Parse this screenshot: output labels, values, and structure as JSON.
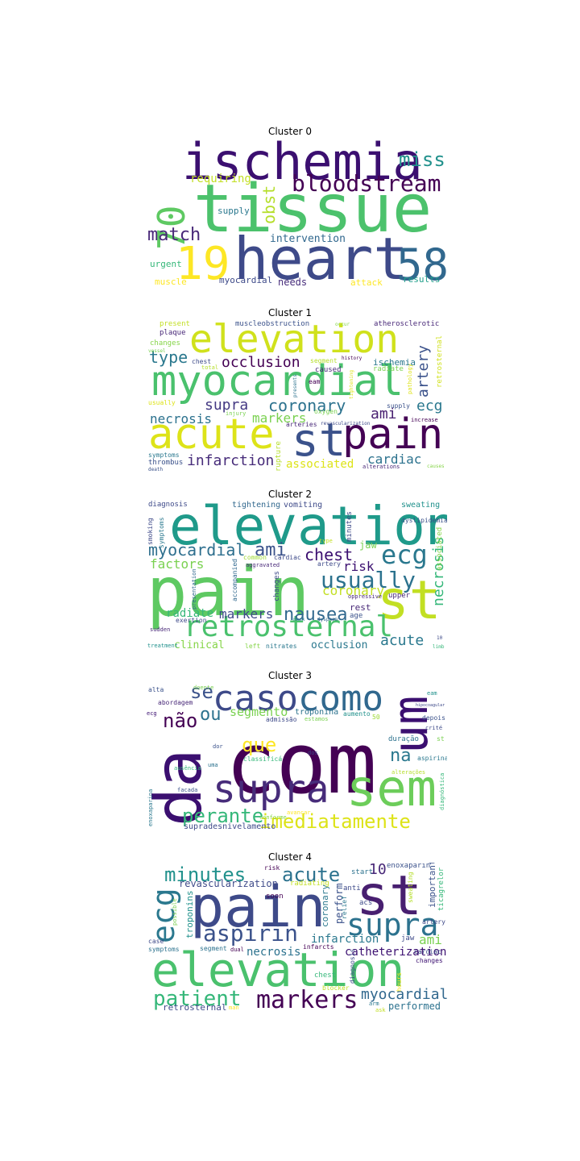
{
  "clusters": [
    {
      "title": "Cluster 0",
      "words": [
        {
          "text": "ischemia",
          "color": "#3b0f70"
        },
        {
          "text": "tissue",
          "color": "#4cc26c"
        },
        {
          "text": "heart",
          "color": "#3e4a89"
        },
        {
          "text": "70",
          "color": "#5ec962"
        },
        {
          "text": "19",
          "color": "#fde725"
        },
        {
          "text": "58",
          "color": "#31688e"
        },
        {
          "text": "bloodstream",
          "color": "#440154"
        },
        {
          "text": "miss",
          "color": "#21918c"
        },
        {
          "text": "match",
          "color": "#482878"
        },
        {
          "text": "obst",
          "color": "#b5de2b"
        },
        {
          "text": "requiring",
          "color": "#c2df23"
        },
        {
          "text": "supply",
          "color": "#2a788e"
        },
        {
          "text": "intervention",
          "color": "#31688e"
        },
        {
          "text": "urgent",
          "color": "#35b779"
        },
        {
          "text": "muscle",
          "color": "#fde725"
        },
        {
          "text": "myocardial",
          "color": "#3e4a89"
        },
        {
          "text": "needs",
          "color": "#472d7b"
        },
        {
          "text": "attack",
          "color": "#fde725"
        },
        {
          "text": "results",
          "color": "#1f9e89"
        }
      ]
    },
    {
      "title": "Cluster 1",
      "words": [
        {
          "text": "elevation",
          "color": "#d0e11c"
        },
        {
          "text": "myocardial",
          "color": "#4ac16d"
        },
        {
          "text": "acute",
          "color": "#dde318"
        },
        {
          "text": "st",
          "color": "#3b528b"
        },
        {
          "text": "pain",
          "color": "#440154"
        },
        {
          "text": "occlusion",
          "color": "#440154"
        },
        {
          "text": "type",
          "color": "#2a788e"
        },
        {
          "text": "coronary",
          "color": "#2c728e"
        },
        {
          "text": "supra",
          "color": "#443983"
        },
        {
          "text": "necrosis",
          "color": "#2c728e"
        },
        {
          "text": "markers",
          "color": "#7ad151"
        },
        {
          "text": "ami",
          "color": "#481f70"
        },
        {
          "text": "ecg",
          "color": "#2a788e"
        },
        {
          "text": "artery",
          "color": "#3b528b"
        },
        {
          "text": "infarction",
          "color": "#472c7a"
        },
        {
          "text": "associated",
          "color": "#dde318"
        },
        {
          "text": "cardiac",
          "color": "#2c728e"
        },
        {
          "text": "present",
          "color": "#c2df23"
        },
        {
          "text": "muscleobstruction",
          "color": "#3b528b"
        },
        {
          "text": "atherosclerotic",
          "color": "#482878"
        },
        {
          "text": "plaque",
          "color": "#482878"
        },
        {
          "text": "changes",
          "color": "#86d549"
        },
        {
          "text": "ischemia",
          "color": "#2a788e"
        },
        {
          "text": "chest",
          "color": "#3e4a89"
        },
        {
          "text": "segment",
          "color": "#b5de2b"
        },
        {
          "text": "caused",
          "color": "#482878"
        },
        {
          "text": "radiate",
          "color": "#7ad151"
        },
        {
          "text": "retrosternal",
          "color": "#d0e11c"
        },
        {
          "text": "eam",
          "color": "#440154"
        },
        {
          "text": "supply",
          "color": "#3b528b"
        },
        {
          "text": "oxygen",
          "color": "#7ad151"
        },
        {
          "text": "usually",
          "color": "#dde318"
        },
        {
          "text": "rupture",
          "color": "#b5de2b"
        },
        {
          "text": "arteries",
          "color": "#482878"
        },
        {
          "text": "symptoms",
          "color": "#2a788e"
        },
        {
          "text": "thrombus",
          "color": "#3b528b"
        },
        {
          "text": "alterations",
          "color": "#482878"
        },
        {
          "text": "increase",
          "color": "#440154"
        },
        {
          "text": "revascularization",
          "color": "#3e4a89"
        },
        {
          "text": "total",
          "color": "#b5de2b"
        },
        {
          "text": "history",
          "color": "#440154"
        },
        {
          "text": "pathology",
          "color": "#dde318"
        },
        {
          "text": "injury",
          "color": "#7ad151"
        },
        {
          "text": "death",
          "color": "#3b528b"
        },
        {
          "text": "causes",
          "color": "#86d549"
        },
        {
          "text": "vessel",
          "color": "#7ad151"
        },
        {
          "text": "occur",
          "color": "#86d549"
        },
        {
          "text": "tightening",
          "color": "#dde318"
        },
        {
          "text": "presents",
          "color": "#2c728e"
        }
      ]
    },
    {
      "title": "Cluster 2",
      "words": [
        {
          "text": "elevation",
          "color": "#1f9a8a"
        },
        {
          "text": "pain",
          "color": "#5ec962"
        },
        {
          "text": "st",
          "color": "#c2df23"
        },
        {
          "text": "retrosternal",
          "color": "#4ac16d"
        },
        {
          "text": "ecg",
          "color": "#2a788e"
        },
        {
          "text": "usually",
          "color": "#2c728e"
        },
        {
          "text": "chest",
          "color": "#3b0f70"
        },
        {
          "text": "myocardial",
          "color": "#2e6f8e"
        },
        {
          "text": "ami",
          "color": "#3b528b"
        },
        {
          "text": "nausea",
          "color": "#31688e"
        },
        {
          "text": "necrosis",
          "color": "#35b779"
        },
        {
          "text": "acute",
          "color": "#2a788e"
        },
        {
          "text": "coronary",
          "color": "#c2df23"
        },
        {
          "text": "factors",
          "color": "#7ad151"
        },
        {
          "text": "risk",
          "color": "#3b0f70"
        },
        {
          "text": "markers",
          "color": "#3e4a89"
        },
        {
          "text": "radiate",
          "color": "#35b779"
        },
        {
          "text": "occlusion",
          "color": "#2a788e"
        },
        {
          "text": "clinical",
          "color": "#86d549"
        },
        {
          "text": "diagnosis",
          "color": "#3e4a89"
        },
        {
          "text": "tightening",
          "color": "#31688e"
        },
        {
          "text": "vomiting",
          "color": "#3e4a89"
        },
        {
          "text": "sweating",
          "color": "#21918c"
        },
        {
          "text": "associated",
          "color": "#86d549"
        },
        {
          "text": "smoking",
          "color": "#3e4a89"
        },
        {
          "text": "symptoms",
          "color": "#2a788e"
        },
        {
          "text": "minutes",
          "color": "#3e4a89"
        },
        {
          "text": "dyslipidemia",
          "color": "#3b528b"
        },
        {
          "text": "jaw",
          "color": "#7ad151"
        },
        {
          "text": "type",
          "color": "#c2df23"
        },
        {
          "text": "common",
          "color": "#a0da39"
        },
        {
          "text": "cardiac",
          "color": "#3e4a89"
        },
        {
          "text": "aggravated",
          "color": "#482878"
        },
        {
          "text": "artery",
          "color": "#3e4a89"
        },
        {
          "text": "accompanied",
          "color": "#31688e"
        },
        {
          "text": "oppressive",
          "color": "#482878"
        },
        {
          "text": "upper",
          "color": "#482878"
        },
        {
          "text": "rest",
          "color": "#482878"
        },
        {
          "text": "age",
          "color": "#3b528b"
        },
        {
          "text": "changes",
          "color": "#3e4a89"
        },
        {
          "text": "presentation",
          "color": "#31688e"
        },
        {
          "text": "neck",
          "color": "#2a788e"
        },
        {
          "text": "dyspnea",
          "color": "#31688e"
        },
        {
          "text": "exertion",
          "color": "#3e4a89"
        },
        {
          "text": "sudden",
          "color": "#482878"
        },
        {
          "text": "treatment",
          "color": "#21918c"
        },
        {
          "text": "left",
          "color": "#86d549"
        },
        {
          "text": "nitrates",
          "color": "#2a788e"
        },
        {
          "text": "10",
          "color": "#3e4a89"
        },
        {
          "text": "limb",
          "color": "#35b779"
        }
      ]
    },
    {
      "title": "Cluster 3",
      "words": [
        {
          "text": "com",
          "color": "#440154"
        },
        {
          "text": "da",
          "color": "#3b0f70"
        },
        {
          "text": "caso",
          "color": "#3e4a89"
        },
        {
          "text": "como",
          "color": "#31688e"
        },
        {
          "text": "um",
          "color": "#3b0f70"
        },
        {
          "text": "supra",
          "color": "#472c7a"
        },
        {
          "text": "sem",
          "color": "#6ccd5a"
        },
        {
          "text": "perante",
          "color": "#35b779"
        },
        {
          "text": "imediatamente",
          "color": "#dde318"
        },
        {
          "text": "se",
          "color": "#3b528b"
        },
        {
          "text": "não",
          "color": "#440154"
        },
        {
          "text": "ou",
          "color": "#2c728e"
        },
        {
          "text": "segmento",
          "color": "#7ad151"
        },
        {
          "text": "que",
          "color": "#fde725"
        },
        {
          "text": "na",
          "color": "#2a788e"
        },
        {
          "text": "troponina",
          "color": "#2c728e"
        },
        {
          "text": "supradesnivelamento",
          "color": "#3e4a89"
        },
        {
          "text": "alta",
          "color": "#3b528b"
        },
        {
          "text": "doente",
          "color": "#7ad151"
        },
        {
          "text": "abordagem",
          "color": "#482878"
        },
        {
          "text": "ecg",
          "color": "#3b0f70"
        },
        {
          "text": "admissão",
          "color": "#3e4a89"
        },
        {
          "text": "estamos",
          "color": "#7ad151"
        },
        {
          "text": "aumento",
          "color": "#21918c"
        },
        {
          "text": "50",
          "color": "#a0da39"
        },
        {
          "text": "duração",
          "color": "#2c728e"
        },
        {
          "text": "depois",
          "color": "#3b528b"
        },
        {
          "text": "st",
          "color": "#7ad151"
        },
        {
          "text": "aspirina",
          "color": "#2a788e"
        },
        {
          "text": "crité",
          "color": "#3e4a89"
        },
        {
          "text": "classificá",
          "color": "#35b779"
        },
        {
          "text": "dor",
          "color": "#3b528b"
        },
        {
          "text": "dos",
          "color": "#3e4a89"
        },
        {
          "text": "uma",
          "color": "#2c728e"
        },
        {
          "text": "ausência",
          "color": "#35b779"
        },
        {
          "text": "alterações",
          "color": "#b5de2b"
        },
        {
          "text": "facada",
          "color": "#3b528b"
        },
        {
          "text": "enoxaparina",
          "color": "#2a788e"
        },
        {
          "text": "diagnóstica",
          "color": "#35b779"
        },
        {
          "text": "conforme",
          "color": "#86d549"
        },
        {
          "text": "avançar",
          "color": "#fde725"
        },
        {
          "text": "eam",
          "color": "#21918c"
        },
        {
          "text": "hipocoagular",
          "color": "#3e4a89"
        }
      ]
    },
    {
      "title": "Cluster 4",
      "words": [
        {
          "text": "pain",
          "color": "#3e4a89"
        },
        {
          "text": "st",
          "color": "#481f70"
        },
        {
          "text": "elevation",
          "color": "#4ac16d"
        },
        {
          "text": "ecg",
          "color": "#2a788e"
        },
        {
          "text": "supra",
          "color": "#2c728e"
        },
        {
          "text": "markers",
          "color": "#440154"
        },
        {
          "text": "aspirin",
          "color": "#3b528b"
        },
        {
          "text": "patient",
          "color": "#35b779"
        },
        {
          "text": "minutes",
          "color": "#21918c"
        },
        {
          "text": "acute",
          "color": "#2c728e"
        },
        {
          "text": "myocardial",
          "color": "#31688e"
        },
        {
          "text": "infarction",
          "color": "#2a788e"
        },
        {
          "text": "ami",
          "color": "#7ad151"
        },
        {
          "text": "catheterization",
          "color": "#3b0f70"
        },
        {
          "text": "revascularization",
          "color": "#3e4a89"
        },
        {
          "text": "10",
          "color": "#482878"
        },
        {
          "text": "necrosis",
          "color": "#2c728e"
        },
        {
          "text": "performed",
          "color": "#2c728e"
        },
        {
          "text": "retrosternal",
          "color": "#3e4a89"
        },
        {
          "text": "troponins",
          "color": "#21918c"
        },
        {
          "text": "coronary",
          "color": "#2a788e"
        },
        {
          "text": "perform",
          "color": "#3b528b"
        },
        {
          "text": "important",
          "color": "#3b528b"
        },
        {
          "text": "enoxaparin",
          "color": "#3b528b"
        },
        {
          "text": "ticagrelor",
          "color": "#35b779"
        },
        {
          "text": "radiating",
          "color": "#c2df23"
        },
        {
          "text": "sweating",
          "color": "#b5de2b"
        },
        {
          "text": "start",
          "color": "#2c728e"
        },
        {
          "text": "risk",
          "color": "#440154"
        },
        {
          "text": "anti",
          "color": "#3e4a89"
        },
        {
          "text": "acs",
          "color": "#3e4a89"
        },
        {
          "text": "relief",
          "color": "#2a788e"
        },
        {
          "text": "jaw",
          "color": "#3e4a89"
        },
        {
          "text": "soon",
          "color": "#440154"
        },
        {
          "text": "possible",
          "color": "#7ad151"
        },
        {
          "text": "case",
          "color": "#3e4a89"
        },
        {
          "text": "symptoms",
          "color": "#2c728e"
        },
        {
          "text": "segment",
          "color": "#2c728e"
        },
        {
          "text": "dual",
          "color": "#440154"
        },
        {
          "text": "infarcts",
          "color": "#440154"
        },
        {
          "text": "diagnosis",
          "color": "#3e4a89"
        },
        {
          "text": "cardiac",
          "color": "#3e4a89"
        },
        {
          "text": "artery",
          "color": "#3e4a89"
        },
        {
          "text": "changes",
          "color": "#3b0f70"
        },
        {
          "text": "chest",
          "color": "#35b779"
        },
        {
          "text": "blocker",
          "color": "#c2df23"
        },
        {
          "text": "hours",
          "color": "#fde725"
        },
        {
          "text": "arm",
          "color": "#2a788e"
        },
        {
          "text": "ask",
          "color": "#c2df23"
        },
        {
          "text": "man",
          "color": "#fde725"
        }
      ]
    }
  ]
}
